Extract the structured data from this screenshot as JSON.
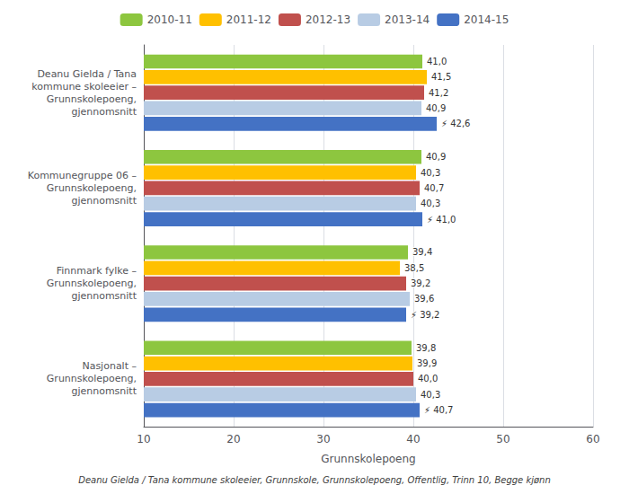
{
  "chart_data": {
    "type": "bar",
    "orientation": "horizontal",
    "categories": [
      "Deanu Gielda / Tana\nkommune skoleeier –\nGrunnskolepoeng,\ngjennomsnitt",
      "Kommunegruppe 06 –\nGrunnskolepoeng,\ngjennomsnitt",
      "Finnmark fylke –\nGrunnskolepoeng,\ngjennomsnitt",
      "Nasjonalt –\nGrunnskolepoeng,\ngjennomsnitt"
    ],
    "series": [
      {
        "name": "2010-11",
        "color": "#8dc63f",
        "values": [
          41.0,
          40.9,
          39.4,
          39.8
        ],
        "value_labels": [
          "41,0",
          "40,9",
          "39,4",
          "39,8"
        ]
      },
      {
        "name": "2011-12",
        "color": "#ffc000",
        "values": [
          41.5,
          40.3,
          38.5,
          39.9
        ],
        "value_labels": [
          "41,5",
          "40,3",
          "38,5",
          "39,9"
        ]
      },
      {
        "name": "2012-13",
        "color": "#c0504d",
        "values": [
          41.2,
          40.7,
          39.2,
          40.0
        ],
        "value_labels": [
          "41,2",
          "40,7",
          "39,2",
          "40,0"
        ]
      },
      {
        "name": "2013-14",
        "color": "#b8cce4",
        "values": [
          40.9,
          40.3,
          39.6,
          40.3
        ],
        "value_labels": [
          "40,9",
          "40,3",
          "39,6",
          "40,3"
        ]
      },
      {
        "name": "2014-15",
        "color": "#4472c4",
        "values": [
          42.6,
          41.0,
          39.2,
          40.7
        ],
        "value_labels": [
          "⚡ 42,6",
          "⚡ 41,0",
          "⚡ 39,2",
          "⚡ 40,7"
        ]
      }
    ],
    "xlabel": "Grunnskolepoeng",
    "xlim": [
      10,
      60
    ],
    "xticks": [
      10,
      20,
      30,
      40,
      50,
      60
    ],
    "grid": true,
    "legend": "top",
    "data_labels": true,
    "annotations": [
      "Deanu Gielda / Tana kommune skoleeier, Grunnskole, Grunnskolepoeng, Offentlig, Trinn 10, Begge kjønn"
    ]
  }
}
